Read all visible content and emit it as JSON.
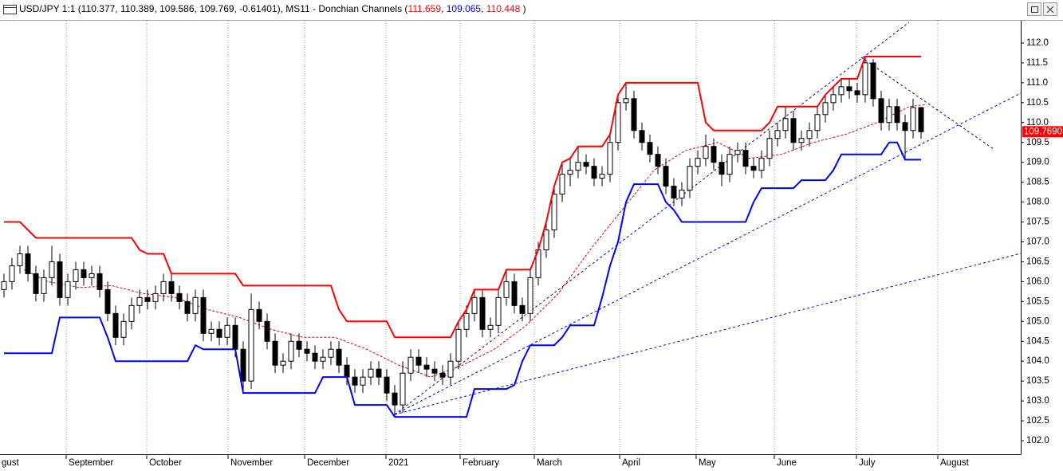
{
  "chart_data": {
    "type": "candlestick",
    "title_segments": [
      {
        "text": "USD/JPY 1:1 (110.377, 110.389, 109.586, 109.769, -0.61401), MS11 - Donchian Channels (",
        "color": "#000000"
      },
      {
        "text": "111.659",
        "color": "#ff0000"
      },
      {
        "text": ", ",
        "color": "#000000"
      },
      {
        "text": "109.065",
        "color": "#0000ff"
      },
      {
        "text": ", ",
        "color": "#000000"
      },
      {
        "text": "110.448",
        "color": "#ff0000"
      },
      {
        "text": " )",
        "color": "#000000"
      }
    ],
    "x": [
      1,
      3,
      5,
      7,
      9,
      11,
      13,
      15,
      17,
      19,
      21,
      23,
      25,
      27,
      29,
      31,
      33,
      35,
      37,
      39,
      41,
      43,
      45,
      47,
      49,
      51,
      53,
      55,
      57,
      59,
      61,
      63,
      65,
      67,
      69,
      71,
      73,
      75,
      77,
      79,
      81,
      83,
      85,
      87,
      89,
      91,
      93,
      95,
      97,
      99,
      101,
      103,
      105,
      107,
      109,
      111,
      113,
      115,
      117,
      119,
      121,
      123,
      125,
      127,
      129,
      131,
      133,
      135,
      137,
      139,
      141,
      143,
      145,
      147,
      149,
      151,
      153,
      155,
      157,
      159,
      161,
      163,
      165,
      167,
      169,
      171,
      173,
      175,
      177,
      179,
      181,
      183,
      185,
      187,
      189,
      191,
      193,
      195,
      197,
      199,
      201,
      203,
      205,
      207,
      209,
      211,
      213,
      215,
      217,
      219,
      221,
      223,
      225,
      227,
      229,
      231
    ],
    "open": [
      105.8,
      106.0,
      106.4,
      106.7,
      106.2,
      105.7,
      106.1,
      106.5,
      105.6,
      106.0,
      106.3,
      106.1,
      106.2,
      105.8,
      105.2,
      104.6,
      105.0,
      105.4,
      105.6,
      105.5,
      105.7,
      106.0,
      105.7,
      105.5,
      105.2,
      105.6,
      104.7,
      104.8,
      104.6,
      104.9,
      104.3,
      103.5,
      105.3,
      105.0,
      104.5,
      103.9,
      104.0,
      104.5,
      104.3,
      104.2,
      104.0,
      104.1,
      104.3,
      103.9,
      103.6,
      103.4,
      103.6,
      103.8,
      103.6,
      103.2,
      102.9,
      103.7,
      104.1,
      103.9,
      103.8,
      103.7,
      103.6,
      104.0,
      104.8,
      105.2,
      105.6,
      104.8,
      104.9,
      105.6,
      106.0,
      105.4,
      105.2,
      106.1,
      106.8,
      107.3,
      108.2,
      108.7,
      108.8,
      109.0,
      108.9,
      108.6,
      108.7,
      109.5,
      110.5,
      110.6,
      109.8,
      109.5,
      109.2,
      108.9,
      108.4,
      108.1,
      108.3,
      108.9,
      109.1,
      109.4,
      109.0,
      108.7,
      109.2,
      109.3,
      108.9,
      108.8,
      109.1,
      109.6,
      109.8,
      110.1,
      109.5,
      109.6,
      109.8,
      110.2,
      110.5,
      110.7,
      110.9,
      110.8,
      110.7,
      111.5,
      110.6,
      110.0,
      110.4,
      110.0,
      109.8,
      110.377
    ],
    "high": [
      106.2,
      106.6,
      106.9,
      106.9,
      106.4,
      106.3,
      106.9,
      106.7,
      106.2,
      106.5,
      106.5,
      106.4,
      106.4,
      106.0,
      105.4,
      105.2,
      105.6,
      105.8,
      105.8,
      105.9,
      106.2,
      106.2,
      105.9,
      105.7,
      105.8,
      105.8,
      105.0,
      105.0,
      105.1,
      105.1,
      104.5,
      105.7,
      105.5,
      105.2,
      104.7,
      104.2,
      104.7,
      104.7,
      104.5,
      104.4,
      104.3,
      104.5,
      104.5,
      104.1,
      103.8,
      103.8,
      104.0,
      104.0,
      103.8,
      103.4,
      104.0,
      104.3,
      104.3,
      104.1,
      104.0,
      103.9,
      104.2,
      105.0,
      105.4,
      105.8,
      105.8,
      105.1,
      105.8,
      106.3,
      106.2,
      105.6,
      106.3,
      107.0,
      107.5,
      108.4,
      109.0,
      109.1,
      109.4,
      109.2,
      109.1,
      108.9,
      109.7,
      110.7,
      111.0,
      110.8,
      110.0,
      109.7,
      109.4,
      109.1,
      108.6,
      108.5,
      109.1,
      109.3,
      109.7,
      109.6,
      109.2,
      109.4,
      109.5,
      109.5,
      109.1,
      109.3,
      109.8,
      110.0,
      110.4,
      110.3,
      109.8,
      110.0,
      110.4,
      110.7,
      110.9,
      111.1,
      111.1,
      111.0,
      111.659,
      111.6,
      110.8,
      110.6,
      110.6,
      110.2,
      110.6,
      110.389
    ],
    "low": [
      105.6,
      105.8,
      106.2,
      106.0,
      105.5,
      105.5,
      105.9,
      105.4,
      105.4,
      105.8,
      105.9,
      105.9,
      105.6,
      105.0,
      104.4,
      104.4,
      104.8,
      105.2,
      105.3,
      105.3,
      105.5,
      105.5,
      105.3,
      105.0,
      105.0,
      104.5,
      104.5,
      104.4,
      104.4,
      104.1,
      103.2,
      103.3,
      104.8,
      104.3,
      103.7,
      103.7,
      103.8,
      104.1,
      104.0,
      103.8,
      103.8,
      103.9,
      103.7,
      103.4,
      103.2,
      103.2,
      103.4,
      103.4,
      103.0,
      102.6,
      102.7,
      103.5,
      103.7,
      103.6,
      103.5,
      103.4,
      103.4,
      103.8,
      104.6,
      105.0,
      104.6,
      104.6,
      104.7,
      105.4,
      105.2,
      105.0,
      105.0,
      105.9,
      106.6,
      107.1,
      108.0,
      108.4,
      108.6,
      108.7,
      108.4,
      108.4,
      108.5,
      109.3,
      110.3,
      109.6,
      109.3,
      109.0,
      108.7,
      108.2,
      107.9,
      107.9,
      108.1,
      108.7,
      108.9,
      108.8,
      108.4,
      108.5,
      109.0,
      108.7,
      108.6,
      108.6,
      108.9,
      109.4,
      109.6,
      109.3,
      109.3,
      109.4,
      109.6,
      110.0,
      110.3,
      110.5,
      110.6,
      110.5,
      110.5,
      110.4,
      109.8,
      109.8,
      109.8,
      109.065,
      109.6,
      109.586
    ],
    "close": [
      106.0,
      106.4,
      106.7,
      106.2,
      105.7,
      106.1,
      106.5,
      105.6,
      106.0,
      106.3,
      106.1,
      106.2,
      105.8,
      105.2,
      104.6,
      105.0,
      105.4,
      105.6,
      105.5,
      105.7,
      106.0,
      105.7,
      105.5,
      105.2,
      105.6,
      104.7,
      104.8,
      104.6,
      104.9,
      104.3,
      103.5,
      105.3,
      105.0,
      104.5,
      103.9,
      104.0,
      104.5,
      104.3,
      104.2,
      104.0,
      104.1,
      104.3,
      103.9,
      103.6,
      103.4,
      103.6,
      103.8,
      103.6,
      103.2,
      102.9,
      103.7,
      104.1,
      103.9,
      103.8,
      103.7,
      103.6,
      104.0,
      104.8,
      105.2,
      105.6,
      104.8,
      104.9,
      105.6,
      106.0,
      105.4,
      105.2,
      106.1,
      106.8,
      107.3,
      108.2,
      108.7,
      108.8,
      109.0,
      108.9,
      108.6,
      108.7,
      109.5,
      110.5,
      110.6,
      109.8,
      109.5,
      109.2,
      108.9,
      108.4,
      108.1,
      108.3,
      108.9,
      109.1,
      109.4,
      109.0,
      108.7,
      109.2,
      109.3,
      108.9,
      108.8,
      109.1,
      109.6,
      109.8,
      110.1,
      109.5,
      109.6,
      109.8,
      110.2,
      110.5,
      110.7,
      110.9,
      110.8,
      110.7,
      111.5,
      110.6,
      110.0,
      110.4,
      110.0,
      109.8,
      110.377,
      109.769
    ],
    "up_color": "#ffffff",
    "down_color": "#000000",
    "channels": [
      {
        "color": "#ff0000",
        "values": [
          107.5,
          107.5,
          107.5,
          107.3,
          107.1,
          107.1,
          107.1,
          107.1,
          107.1,
          107.1,
          107.1,
          107.1,
          107.1,
          107.1,
          107.1,
          107.1,
          107.1,
          106.8,
          106.7,
          106.7,
          106.7,
          106.2,
          106.2,
          106.2,
          106.2,
          106.2,
          106.2,
          106.2,
          106.2,
          106.2,
          105.9,
          105.9,
          105.9,
          105.9,
          105.9,
          105.9,
          105.9,
          105.9,
          105.9,
          105.9,
          105.9,
          105.9,
          105.3,
          105.0,
          105.0,
          105.0,
          105.0,
          105.0,
          105.0,
          104.6,
          104.6,
          104.6,
          104.6,
          104.6,
          104.6,
          104.6,
          104.6,
          105.0,
          105.3,
          105.8,
          105.8,
          105.8,
          105.8,
          106.3,
          106.3,
          106.3,
          106.3,
          106.8,
          107.5,
          108.4,
          109.0,
          109.1,
          109.4,
          109.4,
          109.4,
          109.4,
          109.7,
          110.7,
          111.0,
          111.0,
          111.0,
          111.0,
          111.0,
          111.0,
          111.0,
          111.0,
          111.0,
          111.0,
          110.0,
          109.8,
          109.8,
          109.8,
          109.8,
          109.8,
          109.8,
          109.8,
          110.0,
          110.4,
          110.4,
          110.4,
          110.4,
          110.4,
          110.4,
          110.7,
          110.9,
          111.1,
          111.1,
          111.1,
          111.659,
          111.659,
          111.659,
          111.659,
          111.659,
          111.659,
          111.659,
          111.659
        ]
      },
      {
        "color": "#0000ff",
        "values": [
          104.2,
          104.2,
          104.2,
          104.2,
          104.2,
          104.2,
          104.2,
          105.1,
          105.1,
          105.1,
          105.1,
          105.1,
          105.1,
          104.6,
          104.0,
          104.0,
          104.0,
          104.0,
          104.0,
          104.0,
          104.0,
          104.0,
          104.0,
          104.0,
          104.4,
          104.3,
          104.3,
          104.3,
          104.3,
          104.3,
          103.2,
          103.2,
          103.2,
          103.2,
          103.2,
          103.2,
          103.2,
          103.2,
          103.2,
          103.2,
          103.6,
          103.6,
          103.6,
          103.6,
          102.9,
          102.9,
          102.9,
          102.9,
          102.9,
          102.6,
          102.6,
          102.6,
          102.6,
          102.6,
          102.6,
          102.6,
          102.6,
          102.6,
          102.6,
          103.3,
          103.3,
          103.3,
          103.3,
          103.3,
          103.4,
          104.0,
          104.4,
          104.4,
          104.4,
          104.4,
          104.6,
          104.9,
          104.9,
          104.9,
          104.9,
          105.6,
          106.4,
          107.0,
          108.0,
          108.45,
          108.45,
          108.45,
          108.45,
          108.0,
          107.8,
          107.5,
          107.5,
          107.5,
          107.5,
          107.5,
          107.5,
          107.5,
          107.5,
          107.5,
          108.0,
          108.35,
          108.35,
          108.35,
          108.35,
          108.35,
          108.55,
          108.55,
          108.55,
          108.55,
          108.8,
          109.2,
          109.2,
          109.2,
          109.2,
          109.2,
          109.2,
          109.5,
          109.5,
          109.065,
          109.065,
          109.065
        ]
      }
    ],
    "middle": {
      "color": "#e00000",
      "x": [
        6,
        12,
        20,
        28,
        36,
        44,
        52,
        60,
        68,
        76,
        84,
        92,
        100,
        108,
        116,
        124,
        132,
        140,
        148,
        156,
        164,
        172,
        180,
        188,
        196,
        204,
        212,
        220,
        228,
        232
      ],
      "values": [
        106.3,
        106.0,
        105.85,
        105.9,
        105.7,
        105.6,
        105.3,
        105.1,
        104.8,
        104.6,
        104.6,
        104.3,
        103.9,
        103.6,
        103.9,
        104.3,
        104.9,
        105.7,
        106.8,
        107.8,
        108.8,
        109.3,
        109.5,
        109.1,
        109.2,
        109.5,
        109.7,
        110.0,
        110.4,
        110.45
      ]
    },
    "trendline_color": "#0000cc",
    "trendlines": [
      {
        "x": [
          99,
          228
        ],
        "y": [
          102.66,
          112.52
        ]
      },
      {
        "x": [
          99,
          256
        ],
        "y": [
          102.66,
          110.74
        ]
      },
      {
        "x": [
          99,
          256
        ],
        "y": [
          102.66,
          106.71
        ]
      },
      {
        "x": [
          216,
          249
        ],
        "y": [
          111.64,
          109.35
        ]
      }
    ],
    "last_price": {
      "value": 109.769,
      "label": "109.7690"
    },
    "last_price_color": "#ff0000",
    "xlim": [
      0,
      256
    ],
    "ylim": [
      101.66,
      112.56
    ],
    "xticks": [
      {
        "value": -0.2,
        "label": "gust"
      },
      {
        "value": 16.6,
        "label": "September"
      },
      {
        "value": 36.8,
        "label": "October"
      },
      {
        "value": 57.2,
        "label": "November"
      },
      {
        "value": 76.4,
        "label": "December"
      },
      {
        "value": 96.8,
        "label": "2021"
      },
      {
        "value": 115.4,
        "label": "February"
      },
      {
        "value": 134,
        "label": "March"
      },
      {
        "value": 155.4,
        "label": "April"
      },
      {
        "value": 174.6,
        "label": "May"
      },
      {
        "value": 194.2,
        "label": "June"
      },
      {
        "value": 214.8,
        "label": "July"
      },
      {
        "value": 235.2,
        "label": "August"
      }
    ],
    "yticks": [
      {
        "value": 102,
        "label": "102.0"
      },
      {
        "value": 102.5,
        "label": "102.5"
      },
      {
        "value": 103,
        "label": "103.0"
      },
      {
        "value": 103.5,
        "label": "103.5"
      },
      {
        "value": 104,
        "label": "104.0"
      },
      {
        "value": 104.5,
        "label": "104.5"
      },
      {
        "value": 105,
        "label": "105.0"
      },
      {
        "value": 105.5,
        "label": "105.5"
      },
      {
        "value": 106,
        "label": "106.0"
      },
      {
        "value": 106.5,
        "label": "106.5"
      },
      {
        "value": 107,
        "label": "107.0"
      },
      {
        "value": 107.5,
        "label": "107.5"
      },
      {
        "value": 108,
        "label": "108.0"
      },
      {
        "value": 108.5,
        "label": "108.5"
      },
      {
        "value": 109,
        "label": "109.0"
      },
      {
        "value": 109.5,
        "label": "109.5"
      },
      {
        "value": 110,
        "label": "110.0"
      },
      {
        "value": 110.5,
        "label": "110.5"
      },
      {
        "value": 111,
        "label": "111.0"
      },
      {
        "value": 111.5,
        "label": "111.5"
      },
      {
        "value": 112,
        "label": "112.0"
      }
    ],
    "grid_x": true
  }
}
